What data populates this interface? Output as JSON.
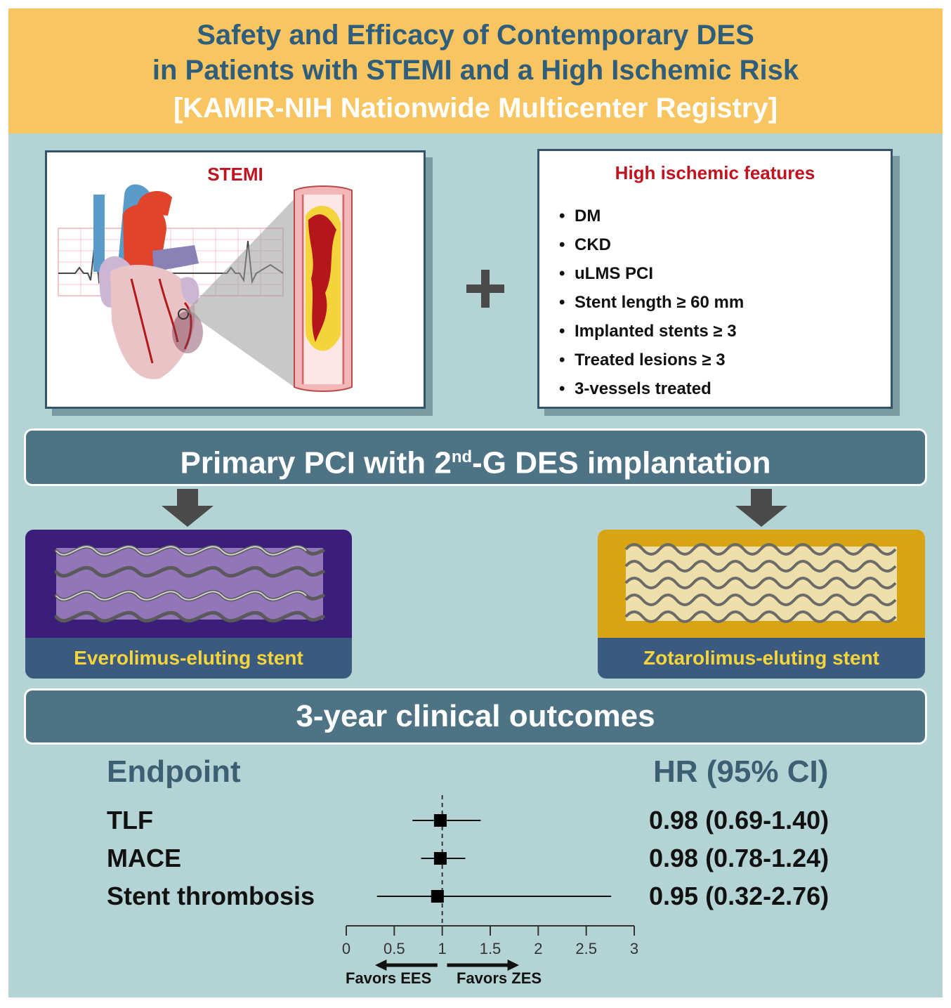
{
  "title": {
    "line1": "Safety and Efficacy of Contemporary DES",
    "line2": "in Patients with STEMI and a High Ischemic Risk",
    "line3": "[KAMIR-NIH Nationwide Multicenter Registry]"
  },
  "stemi_panel": {
    "title": "STEMI"
  },
  "features_panel": {
    "title": "High ischemic features",
    "items": [
      "DM",
      "CKD",
      "uLMS PCI",
      "Stent length ≥ 60 mm",
      "Implanted stents ≥ 3",
      "Treated lesions ≥ 3",
      "3-vessels treated"
    ]
  },
  "pci_bar": {
    "text_before": "Primary PCI with 2",
    "sup": "nd",
    "text_after": "-G DES implantation"
  },
  "stents": {
    "left_label": "Everolimus-eluting stent",
    "right_label": "Zotarolimus-eluting stent",
    "left_color": "#3a1e7a",
    "right_color": "#d7a514"
  },
  "outcomes_bar": {
    "text": "3-year clinical outcomes"
  },
  "forest": {
    "endpoint_header": "Endpoint",
    "hr_header": "HR (95% CI)",
    "rows": [
      {
        "label": "TLF",
        "ci_text": "0.98 (0.69-1.40)"
      },
      {
        "label": "MACE",
        "ci_text": "0.98 (0.78-1.24)"
      },
      {
        "label": "Stent thrombosis",
        "ci_text": "0.95 (0.32-2.76)"
      }
    ],
    "favor_left": "Favors EES",
    "favor_right": "Favors ZES"
  },
  "chart_data": {
    "type": "scatter",
    "title": "",
    "xlabel": "",
    "ylabel": "",
    "xlim": [
      0,
      3
    ],
    "xticks": [
      0,
      0.5,
      1,
      1.5,
      2,
      2.5,
      3
    ],
    "xtick_labels": [
      "0",
      "0.5",
      "1",
      "1.5",
      "2",
      "2.5",
      "3"
    ],
    "reference_line": 1,
    "categories": [
      "TLF",
      "MACE",
      "Stent thrombosis"
    ],
    "hr": [
      0.98,
      0.98,
      0.95
    ],
    "ci_lower": [
      0.69,
      0.78,
      0.32
    ],
    "ci_upper": [
      1.4,
      1.24,
      2.76
    ]
  }
}
